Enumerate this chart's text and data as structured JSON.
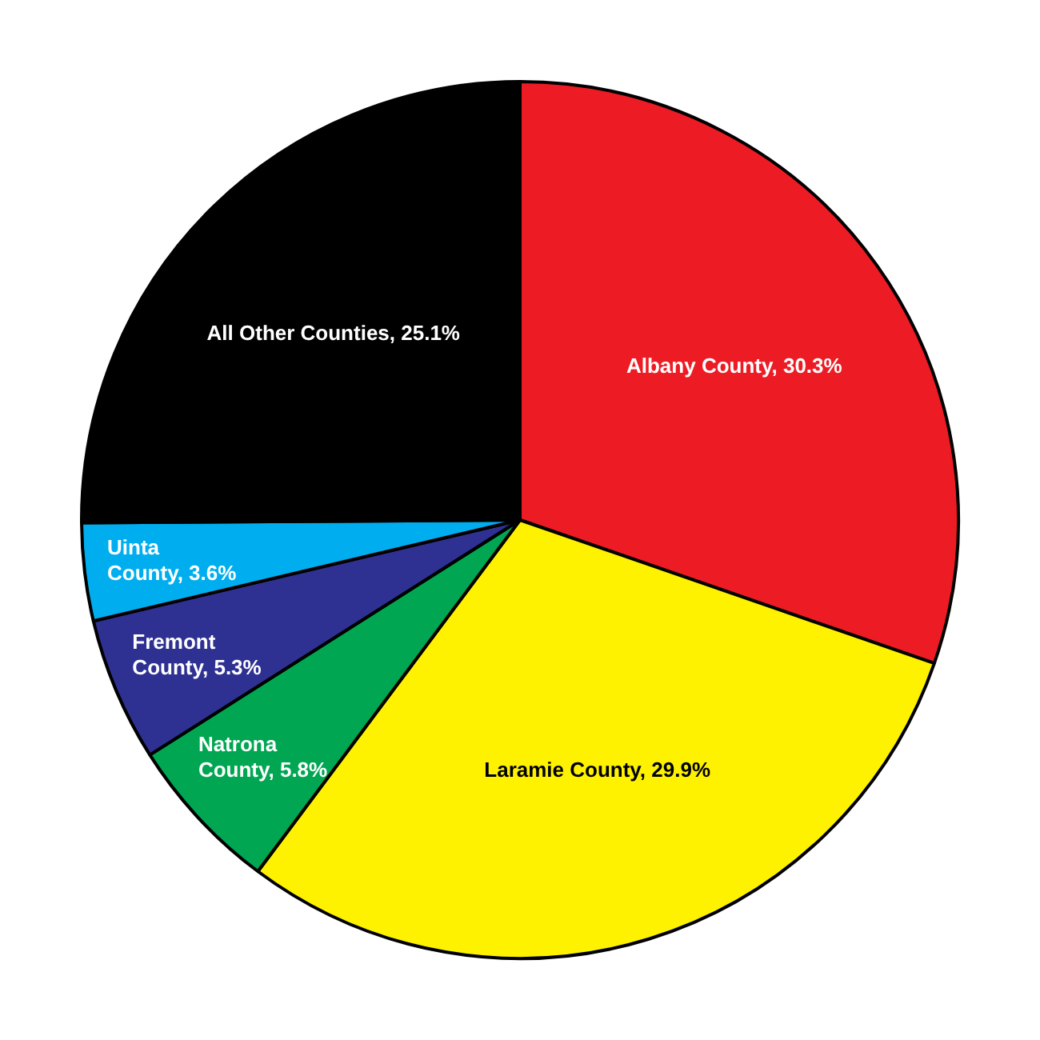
{
  "chart_data": {
    "type": "pie",
    "categories": [
      "Albany County",
      "Laramie County",
      "Natrona County",
      "Fremont County",
      "Uinta County",
      "All Other Counties"
    ],
    "values": [
      30.3,
      29.9,
      5.8,
      5.3,
      3.6,
      25.1
    ],
    "value_labels": [
      "30.3%",
      "29.9%",
      "5.8%",
      "5.3%",
      "3.6%",
      "25.1%"
    ],
    "colors": [
      "#ed1c24",
      "#fff200",
      "#00a651",
      "#2e3192",
      "#00aeef",
      "#000000"
    ],
    "legend": false
  }
}
